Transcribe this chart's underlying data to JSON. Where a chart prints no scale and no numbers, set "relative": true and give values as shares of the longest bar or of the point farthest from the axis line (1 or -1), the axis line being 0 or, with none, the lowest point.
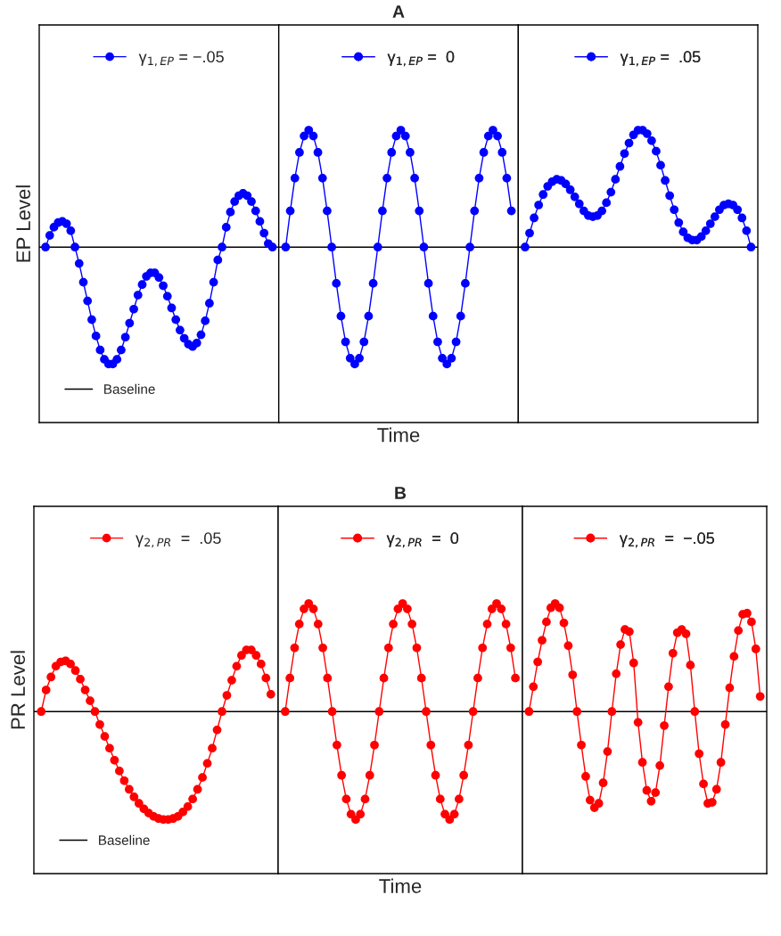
{
  "chart_data": [
    {
      "type": "line",
      "relative": true,
      "ylabel": "EP Level",
      "tick_labels": false,
      "marker": "circle",
      "legend": "top",
      "categories": [
        null,
        null,
        null,
        null,
        null,
        null,
        null,
        null,
        null,
        null,
        null,
        null,
        null,
        null,
        null,
        null,
        null,
        null,
        null,
        null,
        null,
        null,
        null,
        null,
        null,
        null,
        null,
        null,
        null,
        null,
        null,
        null,
        null,
        null,
        null,
        null,
        null,
        null,
        null,
        null,
        null,
        null,
        null,
        null,
        null,
        null,
        null,
        null,
        null,
        null,
        null,
        null,
        null,
        null,
        null
      ],
      "series": [
        {
          "name": "γ$_{1,EP}$ = −.05",
          "color": "#0000ff",
          "values": [
            0,
            0.1,
            0.17,
            0.21,
            0.22,
            0.2,
            0.14,
            0,
            -0.14,
            -0.3,
            -0.46,
            -0.62,
            -0.76,
            -0.88,
            -0.96,
            -1,
            -1,
            -0.96,
            -0.88,
            -0.77,
            -0.65,
            -0.53,
            -0.41,
            -0.32,
            -0.25,
            -0.22,
            -0.22,
            -0.26,
            -0.33,
            -0.42,
            -0.52,
            -0.62,
            -0.71,
            -0.78,
            -0.83,
            -0.85,
            -0.82,
            -0.75,
            -0.63,
            -0.48,
            -0.3,
            -0.11,
            0,
            0.17,
            0.3,
            0.39,
            0.44,
            0.46,
            0.44,
            0.39,
            0.31,
            0.22,
            0.12,
            0.03,
            0
          ]
        }
      ],
      "ref_lines": [
        {
          "axis": "y",
          "value": 0,
          "label": "Baseline",
          "color": "#000000"
        }
      ]
    },
    {
      "type": "line",
      "relative": true,
      "title": "A",
      "xlabel": "Time",
      "tick_labels": false,
      "marker": "circle",
      "legend": "top",
      "categories": [
        null,
        null,
        null,
        null,
        null,
        null,
        null,
        null,
        null,
        null,
        null,
        null,
        null,
        null,
        null,
        null,
        null,
        null,
        null,
        null,
        null,
        null,
        null,
        null,
        null,
        null,
        null,
        null,
        null,
        null,
        null,
        null,
        null,
        null,
        null,
        null,
        null,
        null,
        null,
        null,
        null,
        null,
        null,
        null,
        null,
        null,
        null,
        null,
        null,
        null
      ],
      "series": [
        {
          "name": "γ$_{1,EP}$ =  0",
          "color": "#0000ff",
          "values": [
            0,
            0.31,
            0.59,
            0.81,
            0.95,
            1,
            0.95,
            0.81,
            0.59,
            0.31,
            0,
            -0.31,
            -0.59,
            -0.81,
            -0.95,
            -1,
            -0.95,
            -0.81,
            -0.59,
            -0.31,
            0,
            0.31,
            0.59,
            0.81,
            0.95,
            1,
            0.95,
            0.81,
            0.59,
            0.31,
            0,
            -0.31,
            -0.59,
            -0.81,
            -0.95,
            -1,
            -0.95,
            -0.81,
            -0.59,
            -0.31,
            0,
            0.31,
            0.59,
            0.81,
            0.95,
            1,
            0.95,
            0.81,
            0.59,
            0.31
          ]
        }
      ],
      "ref_lines": [
        {
          "axis": "y",
          "value": 0,
          "color": "#000000"
        }
      ]
    },
    {
      "type": "line",
      "relative": true,
      "tick_labels": false,
      "marker": "circle",
      "legend": "top",
      "categories": [
        null,
        null,
        null,
        null,
        null,
        null,
        null,
        null,
        null,
        null,
        null,
        null,
        null,
        null,
        null,
        null,
        null,
        null,
        null,
        null,
        null,
        null,
        null,
        null,
        null,
        null,
        null,
        null,
        null,
        null,
        null,
        null,
        null,
        null,
        null,
        null,
        null,
        null,
        null,
        null,
        null,
        null,
        null,
        null,
        null,
        null,
        null,
        null,
        null,
        null,
        null
      ],
      "series": [
        {
          "name": "γ$_{1,EP}$ =  .05",
          "color": "#0000ff",
          "values": [
            0,
            0.12,
            0.25,
            0.36,
            0.45,
            0.52,
            0.56,
            0.58,
            0.57,
            0.54,
            0.49,
            0.43,
            0.37,
            0.31,
            0.27,
            0.26,
            0.27,
            0.31,
            0.38,
            0.47,
            0.58,
            0.69,
            0.8,
            0.89,
            0.96,
            1,
            1,
            0.97,
            0.91,
            0.82,
            0.7,
            0.57,
            0.44,
            0.32,
            0.21,
            0.13,
            0.08,
            0.06,
            0.06,
            0.09,
            0.14,
            0.2,
            0.26,
            0.32,
            0.36,
            0.37,
            0.36,
            0.32,
            0.25,
            0.14,
            0
          ]
        }
      ],
      "ref_lines": [
        {
          "axis": "y",
          "value": 0,
          "color": "#000000"
        }
      ]
    },
    {
      "type": "line",
      "relative": true,
      "ylabel": "PR Level",
      "tick_labels": false,
      "marker": "circle",
      "legend": "top",
      "categories": [
        null,
        null,
        null,
        null,
        null,
        null,
        null,
        null,
        null,
        null,
        null,
        null,
        null,
        null,
        null,
        null,
        null,
        null,
        null,
        null,
        null,
        null,
        null,
        null,
        null,
        null,
        null,
        null,
        null,
        null,
        null,
        null,
        null,
        null,
        null,
        null,
        null,
        null,
        null,
        null,
        null,
        null,
        null,
        null,
        null,
        null,
        null,
        null
      ],
      "series": [
        {
          "name": "γ$_{2,PR}$  =  .05",
          "color": "#ff0000",
          "values": [
            0,
            0.2,
            0.32,
            0.42,
            0.46,
            0.47,
            0.44,
            0.38,
            0.3,
            0.2,
            0.1,
            0,
            -0.12,
            -0.23,
            -0.34,
            -0.45,
            -0.55,
            -0.64,
            -0.72,
            -0.79,
            -0.85,
            -0.9,
            -0.94,
            -0.97,
            -0.99,
            -1,
            -1,
            -0.99,
            -0.97,
            -0.93,
            -0.88,
            -0.81,
            -0.72,
            -0.61,
            -0.48,
            -0.34,
            -0.17,
            0,
            0.15,
            0.29,
            0.42,
            0.52,
            0.57,
            0.57,
            0.52,
            0.44,
            0.31,
            0.16
          ]
        }
      ],
      "ref_lines": [
        {
          "axis": "y",
          "value": 0,
          "label": "Baseline",
          "color": "#000000"
        }
      ]
    },
    {
      "type": "line",
      "relative": true,
      "title": "B",
      "xlabel": "Time",
      "tick_labels": false,
      "marker": "circle",
      "legend": "top",
      "categories": [
        null,
        null,
        null,
        null,
        null,
        null,
        null,
        null,
        null,
        null,
        null,
        null,
        null,
        null,
        null,
        null,
        null,
        null,
        null,
        null,
        null,
        null,
        null,
        null,
        null,
        null,
        null,
        null,
        null,
        null,
        null,
        null,
        null,
        null,
        null,
        null,
        null,
        null,
        null,
        null,
        null,
        null,
        null,
        null,
        null,
        null,
        null,
        null,
        null,
        null
      ],
      "series": [
        {
          "name": "γ$_{2,PR}$  =  0",
          "color": "#ff0000",
          "values": [
            0,
            0.31,
            0.59,
            0.81,
            0.95,
            1,
            0.95,
            0.81,
            0.59,
            0.31,
            0,
            -0.31,
            -0.59,
            -0.81,
            -0.95,
            -1,
            -0.95,
            -0.81,
            -0.59,
            -0.31,
            0,
            0.31,
            0.59,
            0.81,
            0.95,
            1,
            0.95,
            0.81,
            0.59,
            0.31,
            0,
            -0.31,
            -0.59,
            -0.81,
            -0.95,
            -1,
            -0.95,
            -0.81,
            -0.59,
            -0.31,
            0,
            0.31,
            0.59,
            0.81,
            0.95,
            1,
            0.95,
            0.81,
            0.59,
            0.31
          ]
        }
      ],
      "ref_lines": [
        {
          "axis": "y",
          "value": 0,
          "color": "#000000"
        }
      ]
    },
    {
      "type": "line",
      "relative": true,
      "tick_labels": false,
      "marker": "circle",
      "legend": "top",
      "categories": [
        null,
        null,
        null,
        null,
        null,
        null,
        null,
        null,
        null,
        null,
        null,
        null,
        null,
        null,
        null,
        null,
        null,
        null,
        null,
        null,
        null,
        null,
        null,
        null,
        null,
        null,
        null,
        null,
        null,
        null,
        null,
        null,
        null,
        null,
        null,
        null,
        null,
        null,
        null,
        null,
        null,
        null,
        null,
        null,
        null,
        null,
        null,
        null,
        null,
        null,
        null,
        null,
        null,
        null
      ],
      "series": [
        {
          "name": "γ$_{2,PR}$  =  −.05",
          "color": "#ff0000",
          "values": [
            0,
            0.23,
            0.46,
            0.66,
            0.83,
            0.96,
            1,
            0.96,
            0.82,
            0.61,
            0.34,
            0,
            -0.31,
            -0.6,
            -0.82,
            -0.89,
            -0.85,
            -0.66,
            -0.37,
            0,
            0.35,
            0.62,
            0.76,
            0.74,
            0.45,
            -0.1,
            -0.47,
            -0.73,
            -0.83,
            -0.75,
            -0.5,
            -0.13,
            0.23,
            0.54,
            0.73,
            0.76,
            0.72,
            0.43,
            0,
            -0.39,
            -0.67,
            -0.85,
            -0.84,
            -0.72,
            -0.47,
            -0.12,
            0.22,
            0.51,
            0.75,
            0.9,
            0.91,
            0.83,
            0.58,
            0.14
          ]
        }
      ],
      "ref_lines": [
        {
          "axis": "y",
          "value": 0,
          "color": "#000000"
        }
      ]
    }
  ]
}
